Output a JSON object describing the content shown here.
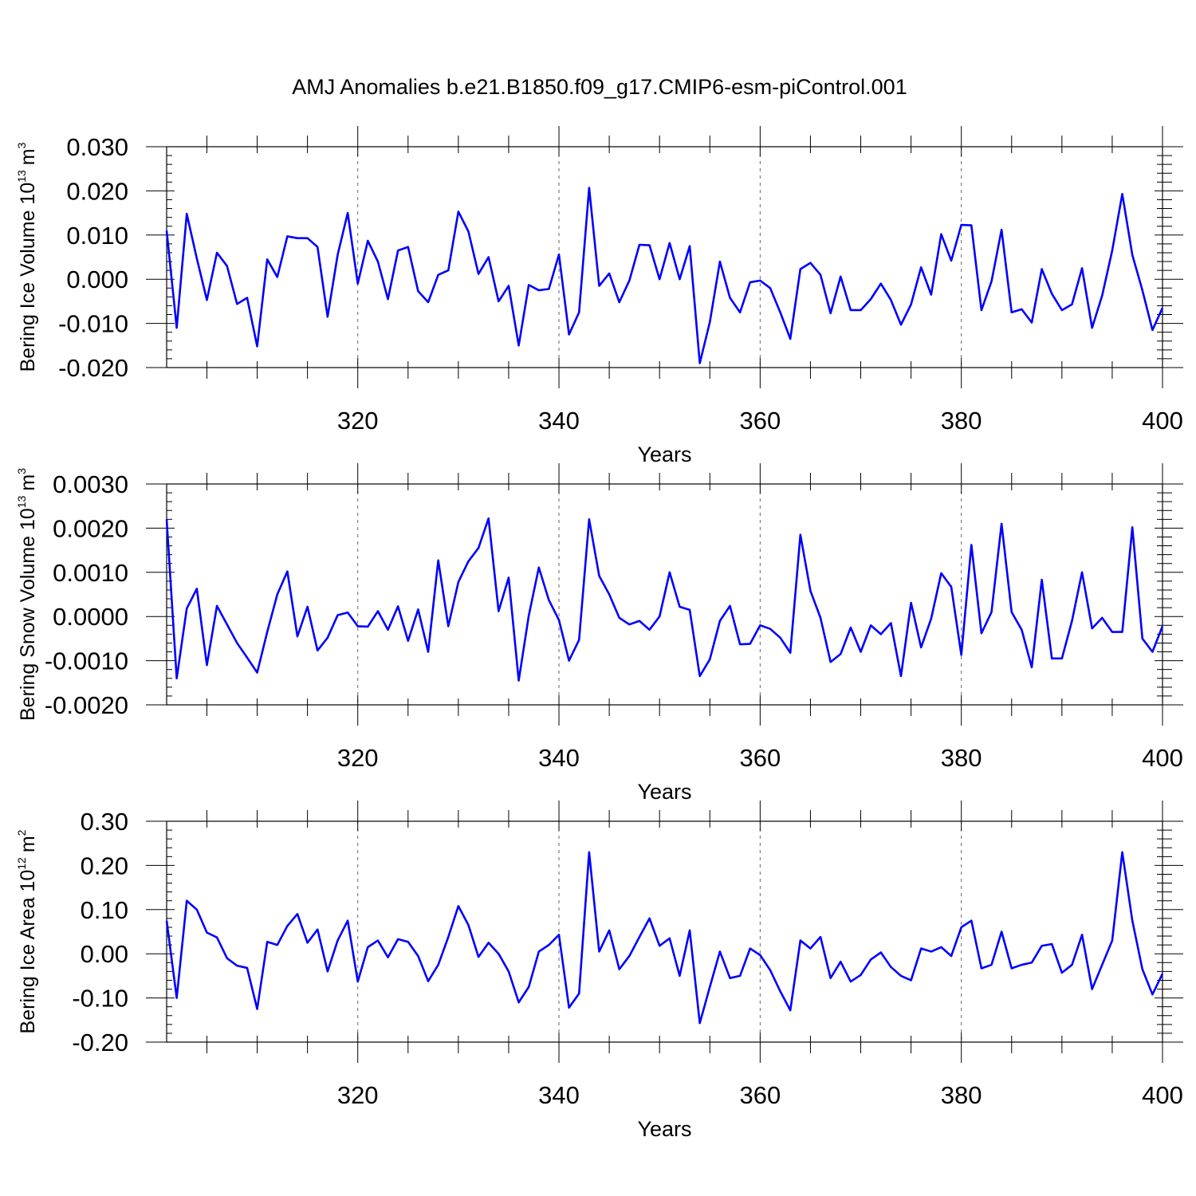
{
  "chart_data": {
    "title": "AMJ Anomalies b.e21.B1850.f09_g17.CMIP6-esm-piControl.001",
    "color": "#0000ff",
    "panels": [
      {
        "type": "line",
        "ylabel_text": "Bering Ice Volume 10",
        "ylabel_exp": "13",
        "ylabel_unit": "m",
        "ylabel_unit_exp": "3",
        "xlabel": "Years",
        "xlim": [
          301,
          400
        ],
        "xticks": [
          "320",
          "340",
          "360",
          "380",
          "400"
        ],
        "ylim": [
          -0.02,
          0.03
        ],
        "yticks": [
          "0.030",
          "0.020",
          "0.010",
          "0.000",
          "-0.010",
          "-0.020"
        ],
        "x_start": 301,
        "values": [
          0.011,
          -0.011,
          0.0148,
          0.0047,
          -0.0047,
          0.006,
          0.003,
          -0.0056,
          -0.0042,
          -0.0152,
          0.0045,
          0.0005,
          0.0097,
          0.0093,
          0.0093,
          0.0073,
          -0.0085,
          0.0055,
          0.015,
          -0.001,
          0.0087,
          0.004,
          -0.0045,
          0.0065,
          0.0073,
          -0.0027,
          -0.0052,
          0.001,
          0.002,
          0.0153,
          0.0108,
          0.0012,
          0.005,
          -0.005,
          -0.0015,
          -0.015,
          -0.0013,
          -0.0025,
          -0.0022,
          0.0056,
          -0.0125,
          -0.0075,
          0.0207,
          -0.0015,
          0.0013,
          -0.0052,
          -0.0003,
          0.0078,
          0.0077,
          0.0,
          0.0082,
          0.0,
          0.0075,
          -0.019,
          -0.0097,
          0.004,
          -0.0042,
          -0.0075,
          -0.0007,
          -0.0003,
          -0.002,
          -0.0075,
          -0.0135,
          0.0023,
          0.0037,
          0.001,
          -0.0077,
          0.0006,
          -0.007,
          -0.007,
          -0.0045,
          -0.001,
          -0.0047,
          -0.0103,
          -0.0057,
          0.0027,
          -0.0035,
          0.0102,
          0.0042,
          0.0123,
          0.0122,
          -0.007,
          -0.0005,
          0.0112,
          -0.0075,
          -0.0068,
          -0.0098,
          0.0023,
          -0.0033,
          -0.007,
          -0.0057,
          0.0025,
          -0.011,
          -0.0037,
          0.0065,
          0.0193,
          0.0055,
          -0.0025,
          -0.0115,
          -0.0065
        ]
      },
      {
        "type": "line",
        "ylabel_text": "Bering Snow Volume 10",
        "ylabel_exp": "13",
        "ylabel_unit": "m",
        "ylabel_unit_exp": "3",
        "xlabel": "Years",
        "xlim": [
          301,
          400
        ],
        "xticks": [
          "320",
          "340",
          "360",
          "380",
          "400"
        ],
        "ylim": [
          -0.002,
          0.003
        ],
        "yticks": [
          "0.0030",
          "0.0020",
          "0.0010",
          "0.0000",
          "-0.0010",
          "-0.0020"
        ],
        "x_start": 301,
        "values": [
          0.0022,
          -0.0014,
          0.00018,
          0.00063,
          -0.0011,
          0.00024,
          -0.00018,
          -0.0006,
          -0.00093,
          -0.00127,
          -0.00035,
          0.0005,
          0.00102,
          -0.00045,
          0.00022,
          -0.00077,
          -0.00048,
          3e-05,
          9e-05,
          -0.00022,
          -0.00023,
          0.00012,
          -0.0003,
          0.00023,
          -0.00055,
          0.00016,
          -0.0008,
          0.00127,
          -0.00022,
          0.00078,
          0.00125,
          0.00155,
          0.00222,
          0.00012,
          0.00088,
          -0.00145,
          2e-05,
          0.00111,
          0.00037,
          -8e-05,
          -0.001,
          -0.00053,
          0.0022,
          0.00092,
          0.0005,
          -3e-05,
          -0.00018,
          -0.0001,
          -0.0003,
          0.0,
          0.001,
          0.00022,
          0.00015,
          -0.00135,
          -0.00097,
          -0.0001,
          0.00024,
          -0.00063,
          -0.00062,
          -0.0002,
          -0.00028,
          -0.00048,
          -0.00082,
          0.00185,
          0.00058,
          -3e-05,
          -0.00103,
          -0.00085,
          -0.00025,
          -0.0008,
          -0.0002,
          -0.0004,
          -0.00015,
          -0.00135,
          0.00031,
          -0.0007,
          -5e-05,
          0.00098,
          0.00067,
          -0.00087,
          0.00162,
          -0.00038,
          0.0001,
          0.0021,
          0.0001,
          -0.0003,
          -0.00115,
          0.00083,
          -0.00095,
          -0.00095,
          -0.0001,
          0.001,
          -0.00027,
          -3e-05,
          -0.00035,
          -0.00035,
          0.00202,
          -0.0005,
          -0.0008,
          -0.00022
        ]
      },
      {
        "type": "line",
        "ylabel_text": "Bering Ice Area 10",
        "ylabel_exp": "12",
        "ylabel_unit": "m",
        "ylabel_unit_exp": "2",
        "xlabel": "Years",
        "xlim": [
          301,
          400
        ],
        "xticks": [
          "320",
          "340",
          "360",
          "380",
          "400"
        ],
        "ylim": [
          -0.2,
          0.3
        ],
        "yticks": [
          "0.30",
          "0.20",
          "0.10",
          "0.00",
          "-0.10",
          "-0.20"
        ],
        "x_start": 301,
        "values": [
          0.075,
          -0.1,
          0.12,
          0.1,
          0.048,
          0.037,
          -0.01,
          -0.027,
          -0.032,
          -0.125,
          0.027,
          0.02,
          0.063,
          0.09,
          0.025,
          0.055,
          -0.04,
          0.03,
          0.075,
          -0.063,
          0.015,
          0.03,
          -0.008,
          0.033,
          0.027,
          -0.005,
          -0.062,
          -0.025,
          0.038,
          0.108,
          0.065,
          -0.007,
          0.025,
          0.0,
          -0.04,
          -0.11,
          -0.075,
          0.005,
          0.02,
          0.043,
          -0.122,
          -0.09,
          0.23,
          0.005,
          0.053,
          -0.035,
          -0.005,
          0.038,
          0.08,
          0.018,
          0.035,
          -0.05,
          0.053,
          -0.157,
          -0.075,
          0.005,
          -0.055,
          -0.05,
          0.012,
          -0.003,
          -0.037,
          -0.085,
          -0.128,
          0.03,
          0.012,
          0.038,
          -0.055,
          -0.018,
          -0.063,
          -0.048,
          -0.013,
          0.003,
          -0.03,
          -0.05,
          -0.06,
          0.012,
          0.005,
          0.015,
          -0.005,
          0.06,
          0.075,
          -0.033,
          -0.025,
          0.05,
          -0.033,
          -0.025,
          -0.02,
          0.018,
          0.022,
          -0.043,
          -0.025,
          0.043,
          -0.08,
          -0.025,
          0.03,
          0.23,
          0.075,
          -0.035,
          -0.092,
          -0.045
        ]
      }
    ]
  }
}
